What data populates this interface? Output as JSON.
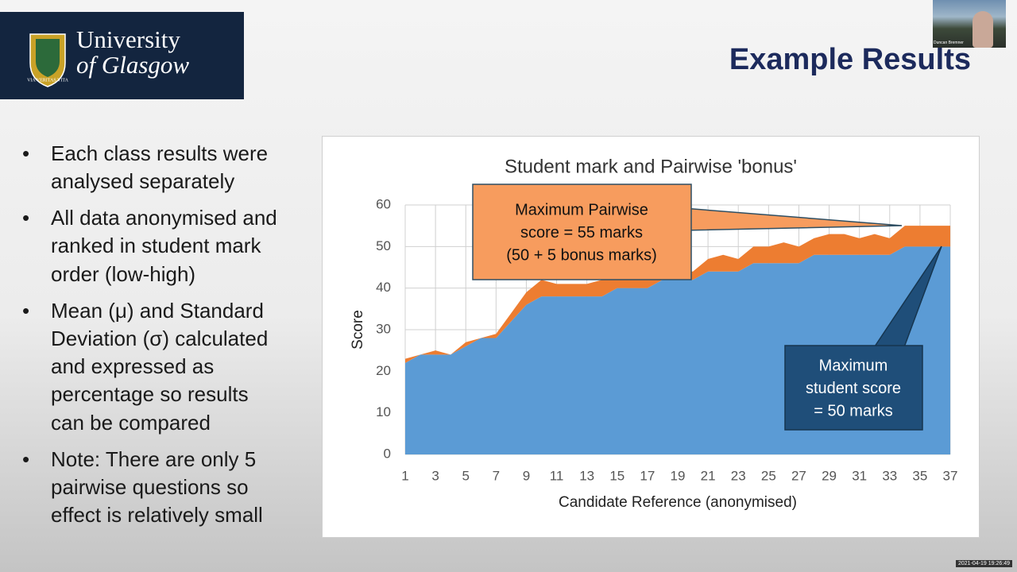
{
  "header": {
    "title": "Example Results",
    "logo": [
      "University",
      "of Glasgow"
    ],
    "motto": "VIA VERITAS VITA"
  },
  "video": {
    "name": "Duncan Bremner"
  },
  "timestamp": "2021-04-19 19:26:49",
  "bullets": [
    [
      "Each class results were",
      "analysed separately"
    ],
    [
      "All data anonymised and",
      "ranked in student mark",
      "order (low-high)"
    ],
    [
      "Mean (μ) and Standard",
      "Deviation (σ) calculated",
      "and expressed as",
      "percentage so results",
      "can be compared"
    ],
    [
      "Note: There are only 5",
      "pairwise questions so",
      "effect is relatively small"
    ]
  ],
  "chart_data": {
    "type": "stacked-area",
    "title": "Student mark and Pairwise 'bonus'",
    "x_label": "Candidate Reference (anonymised)",
    "y_label": "Score",
    "x": [
      1,
      2,
      3,
      4,
      5,
      6,
      7,
      8,
      9,
      10,
      11,
      12,
      13,
      14,
      15,
      16,
      17,
      18,
      19,
      20,
      21,
      22,
      23,
      24,
      25,
      26,
      27,
      28,
      29,
      30,
      31,
      32,
      33,
      34,
      35,
      36,
      37
    ],
    "series": [
      {
        "color": "#5b9bd5",
        "values": [
          22,
          24,
          24,
          24,
          26,
          28,
          28,
          32,
          36,
          38,
          38,
          38,
          38,
          38,
          40,
          40,
          40,
          42,
          42,
          42,
          44,
          44,
          44,
          46,
          46,
          46,
          46,
          48,
          48,
          48,
          48,
          48,
          48,
          50,
          50,
          50,
          50
        ]
      },
      {
        "color": "#ed7d31",
        "values": [
          1,
          0,
          1,
          0,
          1,
          0,
          1,
          2,
          3,
          4,
          3,
          3,
          3,
          4,
          2,
          2,
          3,
          2,
          2,
          2,
          3,
          4,
          3,
          4,
          4,
          5,
          4,
          4,
          5,
          5,
          4,
          5,
          4,
          5,
          5,
          5,
          5
        ]
      }
    ],
    "xlim": [
      1,
      37
    ],
    "xticks": [
      1,
      3,
      5,
      7,
      9,
      11,
      13,
      15,
      17,
      19,
      21,
      23,
      25,
      27,
      29,
      31,
      33,
      35,
      37
    ],
    "ylim": [
      0,
      60
    ],
    "yticks": [
      0,
      10,
      20,
      30,
      40,
      50,
      60
    ],
    "grid": true,
    "annotations": [
      {
        "lines": [
          "Maximum Pairwise",
          "score = 55 marks",
          "(50 + 5 bonus marks)"
        ],
        "color": "#f79c5e"
      },
      {
        "lines": [
          "Maximum",
          "student score",
          "= 50 marks"
        ],
        "color": "#1f4e79"
      }
    ]
  }
}
